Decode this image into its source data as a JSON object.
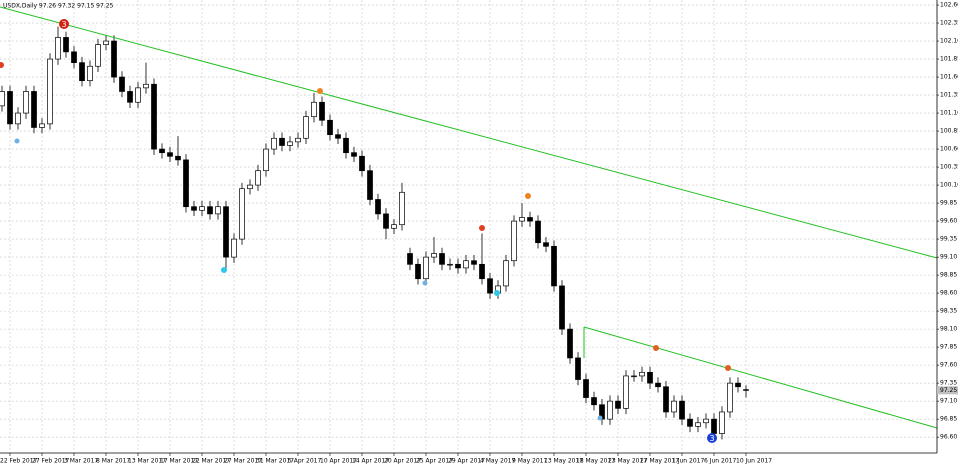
{
  "chart_data": {
    "type": "candlestick",
    "title": "USDX,Daily  97.26 97.32 97.15 97.25",
    "categories": [
      null,
      "22 Feb 2017",
      null,
      null,
      null,
      "27 Feb 2017",
      null,
      null,
      null,
      "3 Mar 2017",
      null,
      null,
      null,
      "8 Mar 2017",
      null,
      null,
      null,
      "13 Mar 2017",
      null,
      null,
      null,
      "17 Mar 2017",
      null,
      null,
      null,
      "22 Mar 2017",
      null,
      null,
      null,
      "27 Mar 2017",
      null,
      null,
      null,
      "31 Mar 2017",
      null,
      null,
      null,
      "5 Apr 2017",
      null,
      null,
      null,
      "10 Apr 2017",
      null,
      null,
      null,
      "14 Apr 2017",
      null,
      null,
      null,
      "20 Apr 2017",
      null,
      null,
      null,
      "25 Apr 2017",
      null,
      null,
      null,
      "29 Apr 2017",
      null,
      null,
      null,
      "4 May 2017",
      null,
      null,
      null,
      "9 May 2017",
      null,
      null,
      null,
      "13 May 2017",
      null,
      null,
      null,
      "18 May 2017",
      null,
      null,
      null,
      "23 May 2017",
      null,
      null,
      null,
      "27 May 2017",
      null,
      null,
      null,
      "1 Jun 2017",
      null,
      null,
      null,
      "6 Jun 2017",
      null,
      null,
      null,
      "10 Jun 2017"
    ],
    "open": [
      101.2,
      101.4,
      100.95,
      101.1,
      101.4,
      100.9,
      100.95,
      101.85,
      102.15,
      101.95,
      101.8,
      101.55,
      101.75,
      102.05,
      102.1,
      101.6,
      101.4,
      101.25,
      101.45,
      101.5,
      100.6,
      100.55,
      100.5,
      100.45,
      99.8,
      99.75,
      99.8,
      99.7,
      99.8,
      99.1,
      99.35,
      100.05,
      100.1,
      100.3,
      100.6,
      100.75,
      100.65,
      100.7,
      100.75,
      101.05,
      101.25,
      101.0,
      100.8,
      100.75,
      100.55,
      100.5,
      100.3,
      99.9,
      99.7,
      99.5,
      99.55,
      99.15,
      99.0,
      98.8,
      99.1,
      99.15,
      99.0,
      99.0,
      98.95,
      99.05,
      99.0,
      98.8,
      98.6,
      98.7,
      99.05,
      99.6,
      99.65,
      99.6,
      99.3,
      99.25,
      98.7,
      98.1,
      97.7,
      97.4,
      97.15,
      97.05,
      96.85,
      97.1,
      97.0,
      97.45,
      97.45,
      97.5,
      97.35,
      97.3,
      96.95,
      97.1,
      96.85,
      96.75,
      96.8,
      96.85,
      96.65,
      96.95,
      97.35,
      97.26
    ],
    "high": [
      101.48,
      101.48,
      101.18,
      101.48,
      101.48,
      101.03,
      101.93,
      102.3,
      102.23,
      102.03,
      101.88,
      101.83,
      102.13,
      102.18,
      102.18,
      101.68,
      101.48,
      101.53,
      101.8,
      101.58,
      100.68,
      100.63,
      100.78,
      100.53,
      99.88,
      99.88,
      99.88,
      99.88,
      99.88,
      99.43,
      100.13,
      100.18,
      100.38,
      100.68,
      100.83,
      100.83,
      100.78,
      100.83,
      101.13,
      101.38,
      101.33,
      101.08,
      100.88,
      100.83,
      100.63,
      100.58,
      100.38,
      99.98,
      99.78,
      99.63,
      100.13,
      99.23,
      99.08,
      99.18,
      99.38,
      99.23,
      99.08,
      99.08,
      99.13,
      99.13,
      99.43,
      98.88,
      98.78,
      99.13,
      99.68,
      99.85,
      99.73,
      99.68,
      99.38,
      99.33,
      98.78,
      98.18,
      97.78,
      97.48,
      97.23,
      97.13,
      97.18,
      97.18,
      97.53,
      97.53,
      97.58,
      97.58,
      97.43,
      97.38,
      97.18,
      97.18,
      96.93,
      96.88,
      96.93,
      96.93,
      97.03,
      97.43,
      97.43,
      97.32
    ],
    "low": [
      101.12,
      100.87,
      100.87,
      101.02,
      100.82,
      100.82,
      100.87,
      101.77,
      101.87,
      101.72,
      101.47,
      101.47,
      101.67,
      101.97,
      101.52,
      101.32,
      101.17,
      101.17,
      101.37,
      100.52,
      100.47,
      100.42,
      100.37,
      99.72,
      99.67,
      99.67,
      99.62,
      99.62,
      98.9,
      99.02,
      99.27,
      99.97,
      100.02,
      100.22,
      100.52,
      100.57,
      100.57,
      100.62,
      100.67,
      100.97,
      100.92,
      100.72,
      100.67,
      100.47,
      100.42,
      100.22,
      99.82,
      99.62,
      99.35,
      99.42,
      99.47,
      98.92,
      98.72,
      98.72,
      99.02,
      98.92,
      98.92,
      98.87,
      98.87,
      98.92,
      98.72,
      98.52,
      98.52,
      98.62,
      98.97,
      99.52,
      99.52,
      99.22,
      99.17,
      98.62,
      98.02,
      97.62,
      97.32,
      97.07,
      96.97,
      96.77,
      96.77,
      96.92,
      96.92,
      97.37,
      97.37,
      97.27,
      97.22,
      96.87,
      96.87,
      96.77,
      96.67,
      96.67,
      96.72,
      96.55,
      96.57,
      96.87,
      97.22,
      97.15
    ],
    "close": [
      101.4,
      100.95,
      101.1,
      101.4,
      100.9,
      100.95,
      101.85,
      102.15,
      101.95,
      101.8,
      101.55,
      101.75,
      102.05,
      102.1,
      101.6,
      101.4,
      101.25,
      101.45,
      101.5,
      100.6,
      100.55,
      100.5,
      100.45,
      99.8,
      99.75,
      99.8,
      99.7,
      99.8,
      99.1,
      99.35,
      100.05,
      100.1,
      100.3,
      100.6,
      100.75,
      100.65,
      100.7,
      100.75,
      101.05,
      101.25,
      101.0,
      100.8,
      100.75,
      100.55,
      100.5,
      100.3,
      99.9,
      99.7,
      99.5,
      99.55,
      100.0,
      99.0,
      98.8,
      99.1,
      99.15,
      99.0,
      99.0,
      98.95,
      99.05,
      99.0,
      98.8,
      98.6,
      98.7,
      99.05,
      99.6,
      99.65,
      99.6,
      99.3,
      99.25,
      98.7,
      98.1,
      97.7,
      97.4,
      97.15,
      97.05,
      96.85,
      97.1,
      97.0,
      97.45,
      97.45,
      97.5,
      97.35,
      97.3,
      96.95,
      97.1,
      96.85,
      96.75,
      96.8,
      96.85,
      96.65,
      96.95,
      97.35,
      97.3,
      97.25
    ],
    "ylim": [
      96.38,
      102.67
    ],
    "yticks": [
      {
        "value": 102.6,
        "label": "102.60"
      },
      102.35,
      {
        "value": 102.1,
        "label": "102.10"
      },
      101.85,
      {
        "value": 101.6,
        "label": "101.60"
      },
      101.35,
      {
        "value": 101.1,
        "label": "101.10"
      },
      100.85,
      {
        "value": 100.6,
        "label": "100.60"
      },
      100.35,
      {
        "value": 100.1,
        "label": "100.10"
      },
      99.85,
      {
        "value": 99.6,
        "label": "99.60"
      },
      99.35,
      {
        "value": 99.1,
        "label": "99.10"
      },
      98.85,
      {
        "value": 98.6,
        "label": "98.60"
      },
      98.35,
      {
        "value": 98.1,
        "label": "98.10"
      },
      97.85,
      {
        "value": 97.6,
        "label": "97.60"
      },
      97.35,
      {
        "value": 97.1,
        "label": "97.10"
      },
      96.85,
      {
        "value": 96.6,
        "label": "96.60"
      }
    ],
    "grid": true,
    "up_color": "#ffffff",
    "down_color": "#000000",
    "annotations": [
      "3",
      "3"
    ]
  }
}
